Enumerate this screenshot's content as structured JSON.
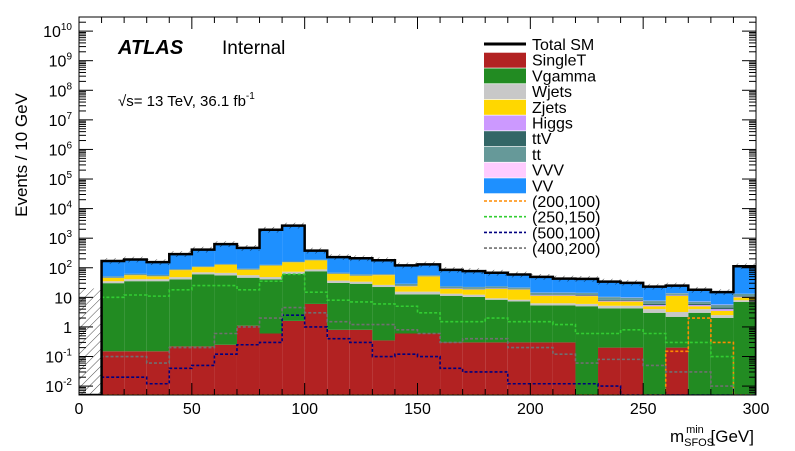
{
  "chart_data": {
    "type": "bar",
    "stacked": true,
    "log_y": true,
    "title": "",
    "experiment": "ATLAS",
    "status": "Internal",
    "energy_label": "= 13 TeV, 36.1 fb",
    "energy_sqrt": "√s",
    "energy_exp": "-1",
    "xlabel_main": "m",
    "xlabel_sup": "min",
    "xlabel_sub": "SFOS",
    "xlabel_unit": " [GeV]",
    "ylabel": "Events / 10 GeV",
    "xlim": [
      0,
      300
    ],
    "ylim": [
      0.005,
      30000000000
    ],
    "x_ticks": [
      "0",
      "50",
      "100",
      "150",
      "200",
      "250",
      "300"
    ],
    "y_ticks": [
      {
        "v": 0.01,
        "b": "10",
        "e": "-2"
      },
      {
        "v": 0.1,
        "b": "10",
        "e": "-1"
      },
      {
        "v": 1,
        "b": "1",
        "e": ""
      },
      {
        "v": 10,
        "b": "10",
        "e": ""
      },
      {
        "v": 100,
        "b": "10",
        "e": "2"
      },
      {
        "v": 1000,
        "b": "10",
        "e": "3"
      },
      {
        "v": 10000,
        "b": "10",
        "e": "4"
      },
      {
        "v": 100000,
        "b": "10",
        "e": "5"
      },
      {
        "v": 1000000,
        "b": "10",
        "e": "6"
      },
      {
        "v": 10000000,
        "b": "10",
        "e": "7"
      },
      {
        "v": 100000000,
        "b": "10",
        "e": "8"
      },
      {
        "v": 1000000000,
        "b": "10",
        "e": "9"
      },
      {
        "v": 10000000000,
        "b": "10",
        "e": "10"
      }
    ],
    "bin_edges": [
      0,
      10,
      20,
      30,
      40,
      50,
      60,
      70,
      80,
      90,
      100,
      110,
      120,
      130,
      140,
      150,
      160,
      170,
      180,
      190,
      200,
      210,
      220,
      230,
      240,
      250,
      260,
      270,
      280,
      290,
      300
    ],
    "stack": [
      {
        "name": "SingleT",
        "color": "#b22222",
        "values": [
          0.005,
          0.15,
          0.15,
          0.15,
          0.22,
          0.22,
          0.25,
          1.1,
          0.6,
          1.6,
          6.0,
          0.8,
          0.8,
          0.35,
          0.6,
          0.6,
          0.3,
          0.3,
          0.3,
          0.3,
          0.3,
          0.3,
          0.005,
          0.2,
          0.2,
          0.005,
          0.2,
          0.005,
          0.005,
          0.005
        ]
      },
      {
        "name": "Vgamma",
        "color": "#228b22",
        "values": [
          0,
          30,
          35,
          35,
          40,
          60,
          55,
          45,
          40,
          60,
          70,
          30,
          28,
          22,
          12,
          12,
          11,
          10,
          8,
          7,
          5,
          5,
          5,
          4,
          4,
          3,
          2,
          3,
          2,
          7
        ]
      },
      {
        "name": "Wjets",
        "color": "#c8c8c8",
        "values": [
          0,
          5,
          6,
          6,
          8,
          10,
          12,
          10,
          8,
          12,
          12,
          6,
          5,
          4,
          3,
          3,
          2,
          2,
          1,
          1,
          1,
          1,
          1,
          1,
          1,
          1,
          1,
          1,
          0.5,
          1
        ]
      },
      {
        "name": "Zjets",
        "color": "#ffd700",
        "values": [
          0,
          10,
          15,
          10,
          35,
          35,
          60,
          30,
          70,
          80,
          90,
          25,
          20,
          30,
          8,
          35,
          6,
          6,
          10,
          10,
          5,
          5,
          5,
          2,
          2,
          1,
          8,
          1,
          1,
          2
        ]
      },
      {
        "name": "Higgs",
        "color": "#cc99ff",
        "values": [
          0,
          0.5,
          0.5,
          0.5,
          0.5,
          0.5,
          0.5,
          0.5,
          0.5,
          0.5,
          0.5,
          0.5,
          0.5,
          0.5,
          0.5,
          0.5,
          0.5,
          0.5,
          0.5,
          0.5,
          0.5,
          0.5,
          0.5,
          0.5,
          0.5,
          0.5,
          0.5,
          0.5,
          0.5,
          0.5
        ]
      },
      {
        "name": "ttV",
        "color": "#336666",
        "values": [
          0,
          0.5,
          0.5,
          0.5,
          0.5,
          0.5,
          0.5,
          0.5,
          0.5,
          0.5,
          0.5,
          0.5,
          0.5,
          0.5,
          0.5,
          0.5,
          0.5,
          0.5,
          0.5,
          0.5,
          0.5,
          0.5,
          0.5,
          0.5,
          0.5,
          0.5,
          0.5,
          0.5,
          0.5,
          0.5
        ]
      },
      {
        "name": "tt",
        "color": "#669999",
        "values": [
          0,
          5,
          5,
          5,
          6,
          6,
          6,
          6,
          6,
          8,
          8,
          5,
          5,
          4,
          4,
          4,
          3,
          3,
          3,
          2,
          2,
          2,
          2,
          2,
          1.5,
          1.5,
          1.5,
          1,
          1,
          2
        ]
      },
      {
        "name": "VVV",
        "color": "#ffccff",
        "values": [
          0,
          0.2,
          0.2,
          0.2,
          0.2,
          0.2,
          0.2,
          0.2,
          0.2,
          0.2,
          0.2,
          0.2,
          0.2,
          0.2,
          0.2,
          0.2,
          0.2,
          0.2,
          0.2,
          0.2,
          0.2,
          0.2,
          0.2,
          0.2,
          0.2,
          0.2,
          0.2,
          0.2,
          0.2,
          0.2
        ]
      },
      {
        "name": "VV",
        "color": "#1e90ff",
        "values": [
          0,
          120,
          130,
          100,
          200,
          300,
          500,
          380,
          1800,
          2500,
          200,
          160,
          150,
          120,
          90,
          75,
          62,
          55,
          45,
          38,
          35,
          30,
          28,
          25,
          22,
          16,
          12,
          12,
          10,
          100
        ]
      }
    ],
    "total_sm": {
      "name": "Total SM",
      "color": "#000000",
      "values": [
        0.005,
        170,
        190,
        155,
        290,
        410,
        630,
        470,
        1930,
        2660,
        380,
        230,
        210,
        180,
        120,
        130,
        85,
        77,
        68,
        59,
        49,
        43,
        42,
        34,
        31,
        23,
        25,
        18,
        15,
        112
      ]
    },
    "signals": [
      {
        "name": "(200,100)",
        "color": "#ff8c00",
        "values": [
          0.005,
          0.005,
          0.005,
          0.005,
          0.005,
          0.005,
          0.005,
          0.005,
          0.005,
          0.005,
          0.005,
          0.005,
          0.005,
          0.005,
          0.005,
          0.005,
          0.005,
          0.005,
          0.005,
          0.005,
          0.005,
          0.005,
          0.005,
          0.005,
          0.005,
          0.005,
          0.15,
          2,
          0.3,
          0.005
        ]
      },
      {
        "name": "(250,150)",
        "color": "#32cd32",
        "values": [
          0.005,
          10,
          12,
          11,
          18,
          25,
          25,
          18,
          35,
          60,
          15,
          8,
          7,
          6,
          5,
          3,
          1.5,
          1.5,
          2,
          1.5,
          1.5,
          1.2,
          0.6,
          0.6,
          0.8,
          0.6,
          0.3,
          0.3,
          0.1,
          0.005
        ]
      },
      {
        "name": "(500,100)",
        "color": "#000080",
        "values": [
          0.005,
          0.02,
          0.02,
          0.012,
          0.04,
          0.05,
          0.12,
          0.25,
          0.3,
          2.5,
          1,
          0.4,
          0.3,
          0.1,
          0.12,
          0.1,
          0.04,
          0.03,
          0.03,
          0.012,
          0.012,
          0.012,
          0.012,
          0.01,
          0.005,
          0.005,
          0.005,
          0.005,
          0.005,
          0.005
        ]
      },
      {
        "name": "(400,200)",
        "color": "#707070",
        "values": [
          0.005,
          0.1,
          0.1,
          0.06,
          0.2,
          0.2,
          0.6,
          1,
          2,
          4.5,
          3,
          1.5,
          1.2,
          1.2,
          0.8,
          0.6,
          0.3,
          0.4,
          0.4,
          0.2,
          0.2,
          0.12,
          0.06,
          0.08,
          0.08,
          0.05,
          0.03,
          0.03,
          0.01,
          0.005
        ]
      }
    ],
    "legend_order": [
      "Total SM",
      "SingleT",
      "Vgamma",
      "Wjets",
      "Zjets",
      "Higgs",
      "ttV",
      "tt",
      "VVV",
      "VV",
      "(200,100)",
      "(250,150)",
      "(500,100)",
      "(400,200)"
    ],
    "legend_labels": {
      "Total SM": "Total SM",
      "SingleT": "SingleT",
      "Vgamma": "Vgamma",
      "Wjets": "Wjets",
      "Zjets": "Zjets",
      "Higgs": "Higgs",
      "ttV": "ttV",
      "tt": "tt",
      "VVV": "VVV",
      "VV": "VV",
      "(200,100)": "(200,100)",
      "(250,150)": "(250,150)",
      "(500,100)": "(500,100)",
      "(400,200)": "(400,200)"
    },
    "legend_position": "top-right",
    "grid": false
  }
}
